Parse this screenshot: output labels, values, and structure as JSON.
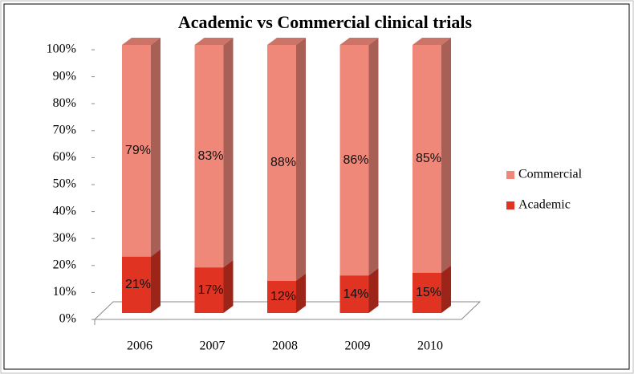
{
  "chart_data": {
    "type": "bar",
    "stacked": true,
    "title": "Academic vs Commercial clinical trials",
    "categories": [
      "2006",
      "2007",
      "2008",
      "2009",
      "2010"
    ],
    "series": [
      {
        "name": "Academic",
        "color": "#e03322",
        "values": [
          21,
          17,
          12,
          14,
          15
        ],
        "value_labels": [
          "21%",
          "17%",
          "12%",
          "14%",
          "15%"
        ]
      },
      {
        "name": "Commercial",
        "color": "#f0887a",
        "values": [
          79,
          83,
          88,
          86,
          85
        ],
        "value_labels": [
          "79%",
          "83%",
          "88%",
          "86%",
          "85%"
        ]
      }
    ],
    "ylim": [
      0,
      100
    ],
    "yticks": [
      {
        "value": 0,
        "label": "0%"
      },
      {
        "value": 10,
        "label": "10%"
      },
      {
        "value": 20,
        "label": "20%"
      },
      {
        "value": 30,
        "label": "30%"
      },
      {
        "value": 40,
        "label": "40%"
      },
      {
        "value": 50,
        "label": "50%"
      },
      {
        "value": 60,
        "label": "60%"
      },
      {
        "value": 70,
        "label": "70%"
      },
      {
        "value": 80,
        "label": "80%"
      },
      {
        "value": 90,
        "label": "90%"
      },
      {
        "value": 100,
        "label": "100%"
      }
    ],
    "legend": "right"
  }
}
